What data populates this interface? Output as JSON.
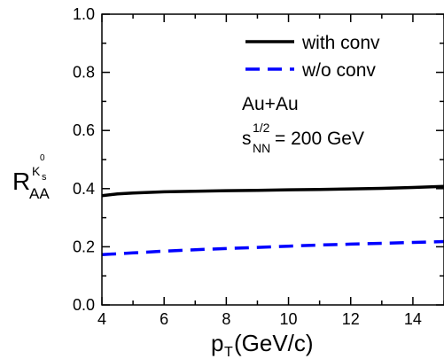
{
  "chart_data": {
    "type": "line",
    "xlim": [
      4,
      15
    ],
    "ylim": [
      0.0,
      1.0
    ],
    "xticks": [
      "4",
      "6",
      "8",
      "10",
      "12",
      "14"
    ],
    "yticks": [
      "0.0",
      "0.2",
      "0.4",
      "0.6",
      "0.8",
      "1.0"
    ],
    "xlabel": {
      "main": "p",
      "sub": "T",
      "unit": " (GeV/c)"
    },
    "ylabel": {
      "main": "R",
      "sub": "AA",
      "sup": "K",
      "sup_sub": "s",
      "sup_sup": "0"
    },
    "legend_position": "top-right",
    "series": [
      {
        "name": "with conv",
        "style": "solid",
        "color": "#000000",
        "x": [
          4.0,
          4.5,
          5.0,
          6.0,
          7.0,
          8.0,
          9.0,
          10.0,
          11.0,
          12.0,
          13.0,
          14.0,
          15.0
        ],
        "y": [
          0.376,
          0.382,
          0.385,
          0.389,
          0.391,
          0.393,
          0.394,
          0.396,
          0.397,
          0.399,
          0.401,
          0.404,
          0.408
        ]
      },
      {
        "name": "w/o conv",
        "style": "dashed",
        "color": "#0000ff",
        "x": [
          4.0,
          5.0,
          6.0,
          7.0,
          8.0,
          9.0,
          10.0,
          11.0,
          12.0,
          13.0,
          14.0,
          15.0
        ],
        "y": [
          0.173,
          0.179,
          0.185,
          0.19,
          0.194,
          0.198,
          0.202,
          0.206,
          0.209,
          0.212,
          0.215,
          0.218
        ]
      }
    ],
    "annotations": {
      "system": "Au+Au",
      "energy_main": "s",
      "energy_sub": "NN",
      "energy_sup": "1/2",
      "energy_value": " = 200 GeV"
    }
  }
}
